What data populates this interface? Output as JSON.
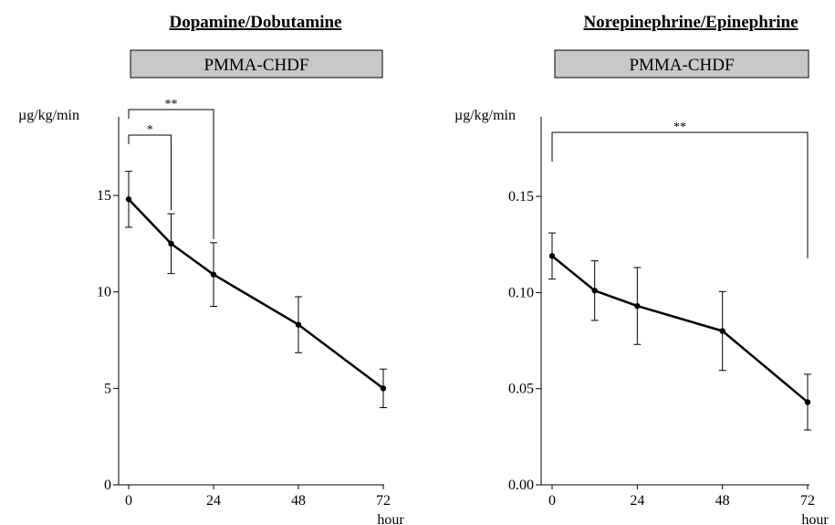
{
  "chart_data": [
    {
      "type": "line",
      "title": "Dopamine/Dobutamine",
      "banner": "PMMA-CHDF",
      "ylabel": "µg/kg/min",
      "xlabel": "hour",
      "ylim": [
        0,
        18
      ],
      "yticks": [
        0,
        5,
        10,
        15
      ],
      "ytick_labels": [
        "0",
        "5",
        "10",
        "15"
      ],
      "xticks": [
        0,
        24,
        48,
        72
      ],
      "xtick_labels": [
        "0",
        "24",
        "48",
        "72"
      ],
      "xlim": [
        0,
        72
      ],
      "grid": false,
      "series": [
        {
          "x": [
            0,
            12,
            24,
            48,
            72
          ],
          "y": [
            14.8,
            12.5,
            10.9,
            8.3,
            5.0
          ],
          "err": [
            1.45,
            1.55,
            1.65,
            1.45,
            1.0
          ]
        }
      ],
      "annotations": [
        {
          "from_x": 0,
          "to_x": 12,
          "label": "*"
        },
        {
          "from_x": 0,
          "to_x": 24,
          "label": "**"
        }
      ]
    },
    {
      "type": "line",
      "title": "Norepinephrine/Epinephrine",
      "banner": "PMMA-CHDF",
      "ylabel": "µg/kg/min",
      "xlabel": "hour",
      "ylim": [
        0,
        0.19
      ],
      "yticks": [
        0,
        0.05,
        0.1,
        0.15
      ],
      "ytick_labels": [
        "0.00",
        "0.05",
        "0.10",
        "0.15"
      ],
      "xticks": [
        0,
        24,
        48,
        72
      ],
      "xtick_labels": [
        "0",
        "24",
        "48",
        "72"
      ],
      "xlim": [
        0,
        72
      ],
      "grid": false,
      "series": [
        {
          "x": [
            0,
            12,
            24,
            48,
            72
          ],
          "y": [
            0.119,
            0.101,
            0.093,
            0.08,
            0.043
          ],
          "err": [
            0.012,
            0.0155,
            0.02,
            0.0205,
            0.0145
          ]
        }
      ],
      "annotations": [
        {
          "from_x": 0,
          "to_x": 72,
          "label": "**"
        }
      ]
    }
  ]
}
